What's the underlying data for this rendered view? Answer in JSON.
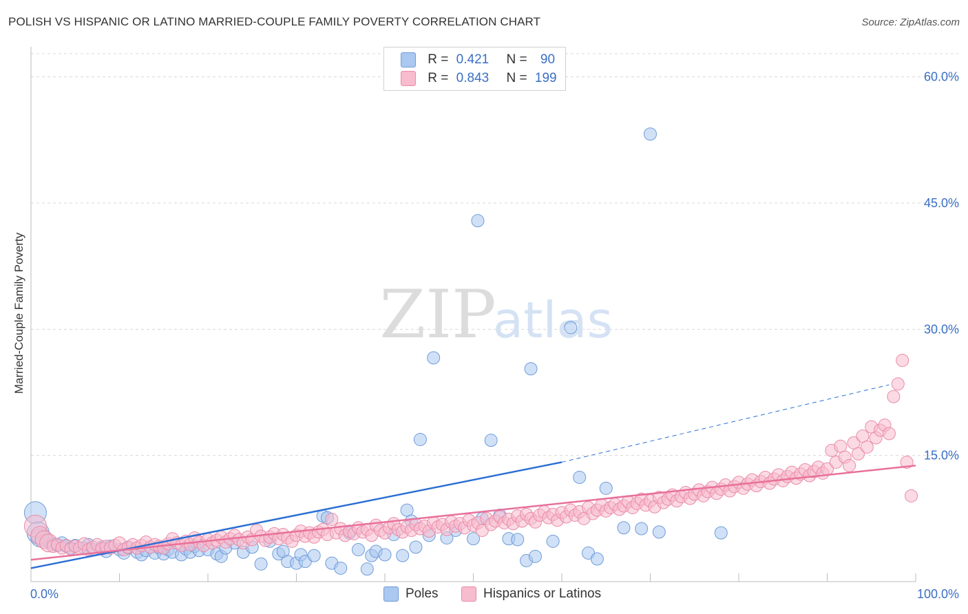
{
  "title": "POLISH VS HISPANIC OR LATINO MARRIED-COUPLE FAMILY POVERTY CORRELATION CHART",
  "source": "Source: ZipAtlas.com",
  "watermark": {
    "zip": "ZIP",
    "atlas": "atlas"
  },
  "legend": {
    "poles": {
      "r_label": "R =",
      "r_value": "0.421",
      "n_label": "N =",
      "n_value": "90"
    },
    "hispanic": {
      "r_label": "R =",
      "r_value": "0.843",
      "n_label": "N =",
      "n_value": "199"
    }
  },
  "bottom_legend": {
    "poles": "Poles",
    "hispanic": "Hispanics or Latinos"
  },
  "colors": {
    "poles_fill": "#aac8f0",
    "poles_stroke": "#6f9bd8",
    "poles_line": "#2b6fd4",
    "hisp_fill": "#f7bccd",
    "hisp_stroke": "#e98aa8",
    "hisp_line": "#e8709a",
    "axis_label": "#3a6fc4",
    "grid": "#d8d8d8"
  },
  "chart_data": {
    "type": "scatter",
    "title": "POLISH VS HISPANIC OR LATINO MARRIED-COUPLE FAMILY POVERTY CORRELATION CHART",
    "xlabel": "",
    "ylabel": "Married-Couple Family Poverty",
    "xlim": [
      0,
      100
    ],
    "ylim": [
      0,
      63
    ],
    "x_tick_labels": [
      "0.0%",
      "100.0%"
    ],
    "y_ticks": [
      15,
      30,
      45,
      60
    ],
    "y_tick_labels": [
      "15.0%",
      "30.0%",
      "45.0%",
      "60.0%"
    ],
    "grid": true,
    "legend_position": "top-center",
    "series": [
      {
        "name": "Poles",
        "r": 0.421,
        "n": 90,
        "trend": {
          "x0": 0,
          "y0": 1.6,
          "x1": 60,
          "y1": 14.2,
          "dash_to_x": 97,
          "dash_to_y": 23.4
        },
        "points": [
          [
            0.5,
            8.2
          ],
          [
            0.8,
            5.8
          ],
          [
            1.0,
            5.2
          ],
          [
            1.5,
            5.0
          ],
          [
            2.0,
            4.8
          ],
          [
            2.5,
            4.5
          ],
          [
            3,
            4.3
          ],
          [
            3.5,
            4.6
          ],
          [
            4,
            4.2
          ],
          [
            4.5,
            4.0
          ],
          [
            5,
            4.3
          ],
          [
            6,
            4.0
          ],
          [
            6.5,
            4.4
          ],
          [
            7,
            3.8
          ],
          [
            8,
            4.1
          ],
          [
            8.5,
            3.6
          ],
          [
            9,
            4.2
          ],
          [
            10,
            3.8
          ],
          [
            10.5,
            3.4
          ],
          [
            11,
            4.0
          ],
          [
            12,
            3.5
          ],
          [
            12.5,
            3.2
          ],
          [
            13,
            3.7
          ],
          [
            14,
            3.4
          ],
          [
            14.5,
            4.0
          ],
          [
            15,
            3.3
          ],
          [
            15.5,
            3.8
          ],
          [
            16,
            3.5
          ],
          [
            17,
            3.2
          ],
          [
            17.5,
            3.9
          ],
          [
            18,
            3.5
          ],
          [
            18.5,
            4.2
          ],
          [
            19,
            3.7
          ],
          [
            20,
            3.8
          ],
          [
            21,
            3.3
          ],
          [
            21.5,
            3.0
          ],
          [
            22,
            4.0
          ],
          [
            23,
            4.6
          ],
          [
            24,
            3.5
          ],
          [
            25,
            4.1
          ],
          [
            26,
            2.1
          ],
          [
            27,
            4.8
          ],
          [
            28,
            3.3
          ],
          [
            28.5,
            3.6
          ],
          [
            29,
            2.4
          ],
          [
            30,
            2.2
          ],
          [
            30.5,
            3.2
          ],
          [
            31,
            2.4
          ],
          [
            32,
            3.1
          ],
          [
            33,
            7.8
          ],
          [
            33.5,
            7.6
          ],
          [
            34,
            2.2
          ],
          [
            35,
            1.6
          ],
          [
            36,
            5.8
          ],
          [
            37,
            3.8
          ],
          [
            38,
            1.5
          ],
          [
            38.5,
            3.1
          ],
          [
            39,
            3.6
          ],
          [
            40,
            3.2
          ],
          [
            41,
            5.6
          ],
          [
            42,
            3.1
          ],
          [
            42.5,
            8.5
          ],
          [
            43,
            7.2
          ],
          [
            43.5,
            4.1
          ],
          [
            44,
            16.9
          ],
          [
            45,
            5.5
          ],
          [
            45.5,
            26.6
          ],
          [
            47,
            5.2
          ],
          [
            48,
            6.1
          ],
          [
            50,
            5.1
          ],
          [
            50.5,
            42.9
          ],
          [
            51,
            7.5
          ],
          [
            52,
            16.8
          ],
          [
            53,
            7.9
          ],
          [
            54,
            5.1
          ],
          [
            55,
            5.0
          ],
          [
            56,
            2.5
          ],
          [
            56.5,
            25.3
          ],
          [
            57,
            3.0
          ],
          [
            59,
            4.8
          ],
          [
            61,
            30.2
          ],
          [
            62,
            12.4
          ],
          [
            63,
            3.4
          ],
          [
            64,
            2.7
          ],
          [
            65,
            11.1
          ],
          [
            67,
            6.4
          ],
          [
            69,
            6.3
          ],
          [
            70,
            53.2
          ],
          [
            71,
            5.9
          ],
          [
            78,
            5.8
          ]
        ]
      },
      {
        "name": "Hispanics or Latinos",
        "r": 0.843,
        "n": 199,
        "trend": {
          "x0": 0,
          "y0": 2.6,
          "x1": 100,
          "y1": 13.8
        },
        "points": [
          [
            0.5,
            6.6
          ],
          [
            1.0,
            5.5
          ],
          [
            1.5,
            5.0
          ],
          [
            2,
            4.6
          ],
          [
            2.5,
            4.2
          ],
          [
            3,
            4.4
          ],
          [
            3.5,
            4.0
          ],
          [
            4,
            4.3
          ],
          [
            4.5,
            3.9
          ],
          [
            5,
            4.2
          ],
          [
            5.5,
            4.0
          ],
          [
            6,
            4.5
          ],
          [
            6.5,
            3.8
          ],
          [
            7,
            4.1
          ],
          [
            7.5,
            4.4
          ],
          [
            8,
            3.9
          ],
          [
            8.5,
            4.2
          ],
          [
            9,
            4.0
          ],
          [
            9.5,
            4.3
          ],
          [
            10,
            4.6
          ],
          [
            10.5,
            3.8
          ],
          [
            11,
            4.1
          ],
          [
            11.5,
            4.4
          ],
          [
            12,
            4.0
          ],
          [
            12.5,
            4.3
          ],
          [
            13,
            4.7
          ],
          [
            13.5,
            4.1
          ],
          [
            14,
            4.4
          ],
          [
            14.5,
            4.2
          ],
          [
            15,
            4.0
          ],
          [
            15.5,
            4.5
          ],
          [
            16,
            5.1
          ],
          [
            16.5,
            4.6
          ],
          [
            17,
            4.3
          ],
          [
            17.5,
            4.8
          ],
          [
            18,
            4.4
          ],
          [
            18.5,
            5.2
          ],
          [
            19,
            4.7
          ],
          [
            19.5,
            4.3
          ],
          [
            20,
            5.0
          ],
          [
            20.5,
            4.6
          ],
          [
            21,
            4.9
          ],
          [
            21.5,
            5.3
          ],
          [
            22,
            4.7
          ],
          [
            22.5,
            5.1
          ],
          [
            23,
            5.5
          ],
          [
            23.5,
            5.0
          ],
          [
            24,
            4.6
          ],
          [
            24.5,
            5.3
          ],
          [
            25,
            5.0
          ],
          [
            25.5,
            6.1
          ],
          [
            26,
            5.4
          ],
          [
            26.5,
            4.9
          ],
          [
            27,
            5.3
          ],
          [
            27.5,
            5.7
          ],
          [
            28,
            5.1
          ],
          [
            28.5,
            5.6
          ],
          [
            29,
            5.2
          ],
          [
            29.5,
            4.8
          ],
          [
            30,
            5.5
          ],
          [
            30.5,
            6.0
          ],
          [
            31,
            5.4
          ],
          [
            31.5,
            5.8
          ],
          [
            32,
            5.3
          ],
          [
            32.5,
            5.9
          ],
          [
            33,
            6.2
          ],
          [
            33.5,
            5.6
          ],
          [
            34,
            7.4
          ],
          [
            34.5,
            5.8
          ],
          [
            35,
            6.3
          ],
          [
            35.5,
            5.5
          ],
          [
            36,
            6.0
          ],
          [
            36.5,
            5.7
          ],
          [
            37,
            6.4
          ],
          [
            37.5,
            5.9
          ],
          [
            38,
            6.2
          ],
          [
            38.5,
            5.5
          ],
          [
            39,
            6.7
          ],
          [
            39.5,
            6.1
          ],
          [
            40,
            5.8
          ],
          [
            40.5,
            6.4
          ],
          [
            41,
            6.9
          ],
          [
            41.5,
            6.2
          ],
          [
            42,
            5.9
          ],
          [
            42.5,
            6.5
          ],
          [
            43,
            6.1
          ],
          [
            43.5,
            6.8
          ],
          [
            44,
            6.3
          ],
          [
            44.5,
            6.6
          ],
          [
            45,
            6.0
          ],
          [
            45.5,
            7.0
          ],
          [
            46,
            6.5
          ],
          [
            46.5,
            6.8
          ],
          [
            47,
            6.2
          ],
          [
            47.5,
            7.1
          ],
          [
            48,
            6.6
          ],
          [
            48.5,
            6.9
          ],
          [
            49,
            6.4
          ],
          [
            49.5,
            7.3
          ],
          [
            50,
            6.7
          ],
          [
            50.5,
            7.0
          ],
          [
            51,
            6.1
          ],
          [
            51.5,
            7.5
          ],
          [
            52,
            6.8
          ],
          [
            52.5,
            7.2
          ],
          [
            53,
            7.7
          ],
          [
            53.5,
            7.0
          ],
          [
            54,
            7.4
          ],
          [
            54.5,
            6.9
          ],
          [
            55,
            7.8
          ],
          [
            55.5,
            7.2
          ],
          [
            56,
            8.0
          ],
          [
            56.5,
            7.5
          ],
          [
            57,
            7.1
          ],
          [
            57.5,
            7.9
          ],
          [
            58,
            8.3
          ],
          [
            58.5,
            7.6
          ],
          [
            59,
            8.0
          ],
          [
            59.5,
            7.3
          ],
          [
            60,
            8.2
          ],
          [
            60.5,
            7.7
          ],
          [
            61,
            8.5
          ],
          [
            61.5,
            7.9
          ],
          [
            62,
            8.3
          ],
          [
            62.5,
            7.5
          ],
          [
            63,
            8.8
          ],
          [
            63.5,
            8.1
          ],
          [
            64,
            8.5
          ],
          [
            64.5,
            9.1
          ],
          [
            65,
            8.4
          ],
          [
            65.5,
            8.8
          ],
          [
            66,
            9.2
          ],
          [
            66.5,
            8.6
          ],
          [
            67,
            9.0
          ],
          [
            67.5,
            9.5
          ],
          [
            68,
            8.8
          ],
          [
            68.5,
            9.3
          ],
          [
            69,
            9.8
          ],
          [
            69.5,
            9.1
          ],
          [
            70,
            9.6
          ],
          [
            70.5,
            8.9
          ],
          [
            71,
            10.0
          ],
          [
            71.5,
            9.4
          ],
          [
            72,
            9.8
          ],
          [
            72.5,
            10.3
          ],
          [
            73,
            9.6
          ],
          [
            73.5,
            10.1
          ],
          [
            74,
            10.6
          ],
          [
            74.5,
            9.9
          ],
          [
            75,
            10.4
          ],
          [
            75.5,
            10.9
          ],
          [
            76,
            10.2
          ],
          [
            76.5,
            10.7
          ],
          [
            77,
            11.2
          ],
          [
            77.5,
            10.5
          ],
          [
            78,
            11.0
          ],
          [
            78.5,
            11.5
          ],
          [
            79,
            10.8
          ],
          [
            79.5,
            11.3
          ],
          [
            80,
            11.8
          ],
          [
            80.5,
            11.1
          ],
          [
            81,
            11.6
          ],
          [
            81.5,
            12.1
          ],
          [
            82,
            11.4
          ],
          [
            82.5,
            11.9
          ],
          [
            83,
            12.4
          ],
          [
            83.5,
            11.7
          ],
          [
            84,
            12.2
          ],
          [
            84.5,
            12.7
          ],
          [
            85,
            12.0
          ],
          [
            85.5,
            12.5
          ],
          [
            86,
            13.0
          ],
          [
            86.5,
            12.3
          ],
          [
            87,
            12.8
          ],
          [
            87.5,
            13.3
          ],
          [
            88,
            12.6
          ],
          [
            88.5,
            13.1
          ],
          [
            89,
            13.6
          ],
          [
            89.5,
            12.9
          ],
          [
            90,
            13.4
          ],
          [
            90.5,
            15.6
          ],
          [
            91,
            14.2
          ],
          [
            91.5,
            16.1
          ],
          [
            92,
            14.8
          ],
          [
            92.5,
            13.8
          ],
          [
            93,
            16.5
          ],
          [
            93.5,
            15.2
          ],
          [
            94,
            17.3
          ],
          [
            94.5,
            16.0
          ],
          [
            95,
            18.4
          ],
          [
            95.5,
            17.1
          ],
          [
            96,
            18.0
          ],
          [
            96.5,
            18.6
          ],
          [
            97,
            17.6
          ],
          [
            97.5,
            22.0
          ],
          [
            98,
            23.5
          ],
          [
            98.5,
            26.3
          ],
          [
            99,
            14.2
          ],
          [
            99.5,
            10.2
          ]
        ]
      }
    ]
  }
}
